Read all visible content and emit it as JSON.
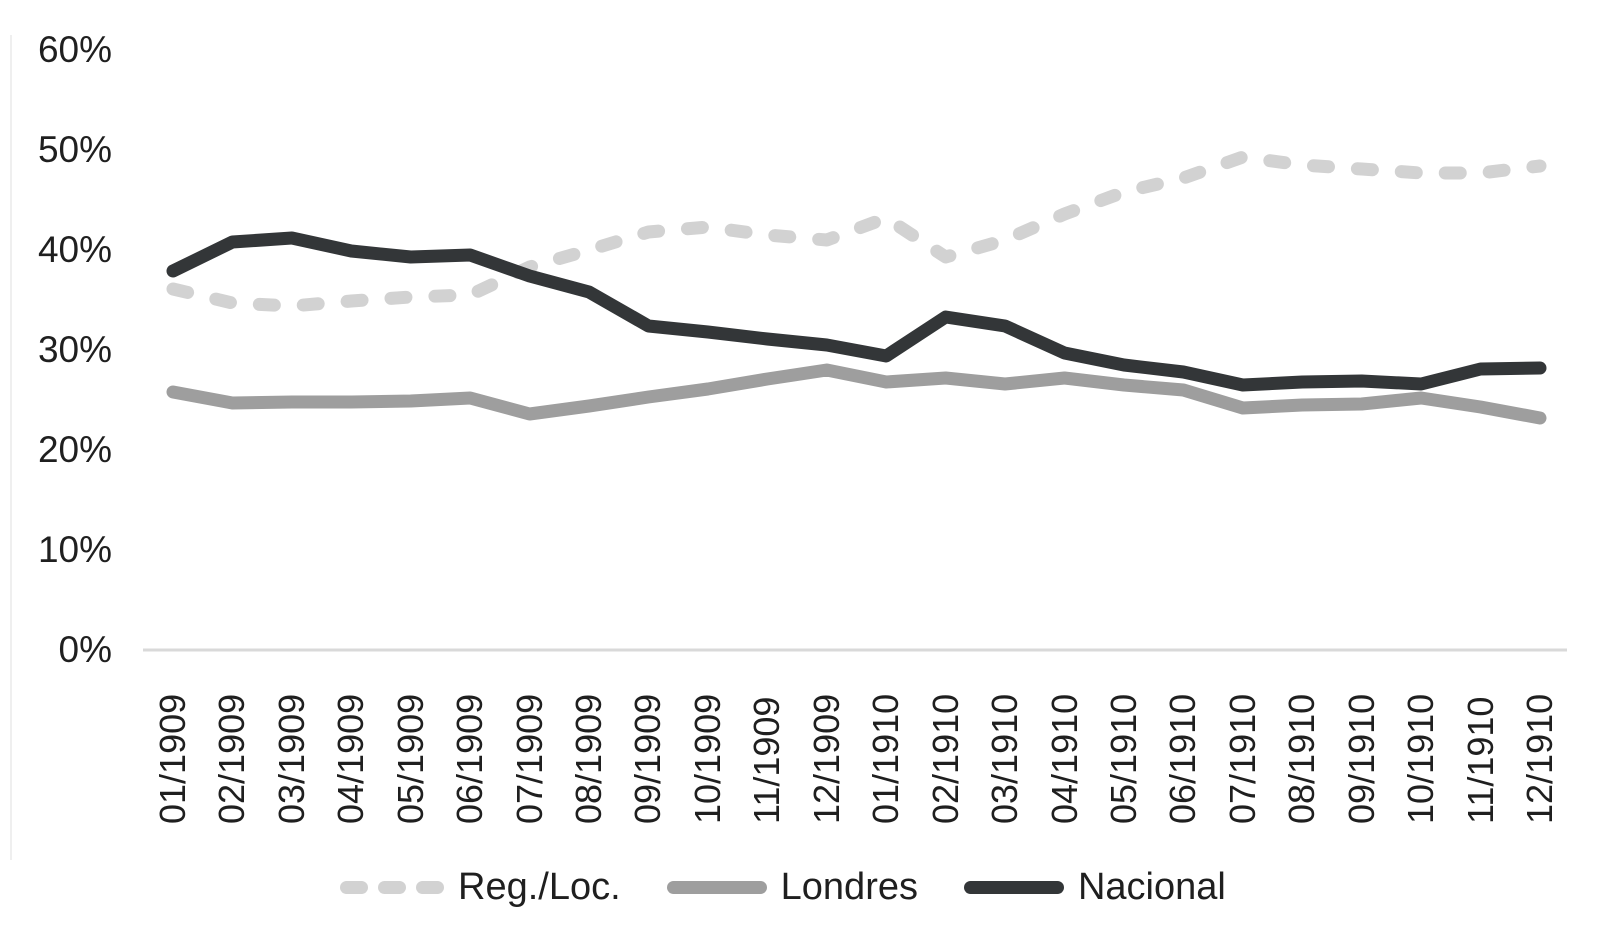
{
  "chart_data": {
    "type": "line",
    "title": "",
    "xlabel": "",
    "ylabel": "",
    "grid": "off",
    "legend_position": "bottom",
    "categories": [
      "01/1909",
      "02/1909",
      "03/1909",
      "04/1909",
      "05/1909",
      "06/1909",
      "07/1909",
      "08/1909",
      "09/1909",
      "10/1909",
      "11/1909",
      "12/1909",
      "01/1910",
      "02/1910",
      "03/1910",
      "04/1910",
      "05/1910",
      "06/1910",
      "07/1910",
      "08/1910",
      "09/1910",
      "10/1910",
      "11/1910",
      "12/1910"
    ],
    "series": [
      {
        "name": "Reg./Loc.",
        "style": "dashed",
        "color": "#d2d2d2",
        "values": [
          36.1,
          34.7,
          34.4,
          34.9,
          35.3,
          35.5,
          38.3,
          40.0,
          41.8,
          42.3,
          41.5,
          41.0,
          43.2,
          39.3,
          41.0,
          43.6,
          45.8,
          47.2,
          49.3,
          48.5,
          48.1,
          47.7,
          47.7,
          48.4
        ]
      },
      {
        "name": "Londres",
        "style": "solid",
        "color": "#9e9e9e",
        "values": [
          25.8,
          24.7,
          24.8,
          24.8,
          24.9,
          25.2,
          23.6,
          24.4,
          25.3,
          26.1,
          27.1,
          28.0,
          26.8,
          27.2,
          26.6,
          27.2,
          26.5,
          26.0,
          24.2,
          24.5,
          24.6,
          25.2,
          24.3,
          23.2
        ]
      },
      {
        "name": "Nacional",
        "style": "solid",
        "color": "#333638",
        "values": [
          37.9,
          40.8,
          41.2,
          39.9,
          39.3,
          39.5,
          37.4,
          35.8,
          32.4,
          31.8,
          31.1,
          30.5,
          29.4,
          33.3,
          32.4,
          29.7,
          28.5,
          27.8,
          26.5,
          26.8,
          26.9,
          26.6,
          28.1,
          28.2
        ]
      }
    ],
    "y_axis": {
      "unit": "%",
      "min": 0,
      "max": 60,
      "tick_labels": [
        "0%",
        "10%",
        "20%",
        "30%",
        "40%",
        "50%",
        "60%"
      ]
    },
    "axis_line_color": "#d9d9d9",
    "text_color": "#1f1f1f"
  }
}
